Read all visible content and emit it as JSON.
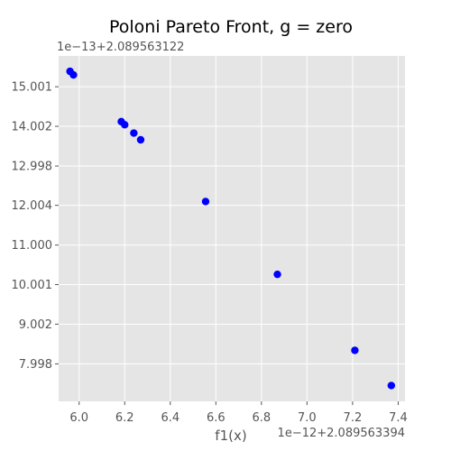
{
  "chart_data": {
    "type": "scatter",
    "title": "Poloni Pareto Front,  g = zero",
    "xlabel": "f1(x)",
    "ylabel": "",
    "x_offset_label": "1e−12+2.089563394",
    "y_offset_label": "1e−13+2.089563122",
    "xlim": [
      5.91,
      7.43
    ],
    "ylim": [
      7.05,
      15.78
    ],
    "grid": true,
    "marker_color": "#0000ff",
    "background_color": "#e5e5e5",
    "x_ticks": [
      {
        "value": 6.0,
        "label": "6.0"
      },
      {
        "value": 6.2,
        "label": "6.2"
      },
      {
        "value": 6.4,
        "label": "6.4"
      },
      {
        "value": 6.6,
        "label": "6.6"
      },
      {
        "value": 6.8,
        "label": "6.8"
      },
      {
        "value": 7.0,
        "label": "7.0"
      },
      {
        "value": 7.2,
        "label": "7.2"
      },
      {
        "value": 7.4,
        "label": "7.4"
      }
    ],
    "y_ticks": [
      {
        "value": 15.001,
        "label": "15.001"
      },
      {
        "value": 14.002,
        "label": "14.002"
      },
      {
        "value": 12.998,
        "label": "12.998"
      },
      {
        "value": 12.004,
        "label": "12.004"
      },
      {
        "value": 11.0,
        "label": "11.000"
      },
      {
        "value": 10.001,
        "label": "10.001"
      },
      {
        "value": 9.002,
        "label": "9.002"
      },
      {
        "value": 7.998,
        "label": "7.998"
      }
    ],
    "points": [
      {
        "x": 5.96,
        "y": 15.39
      },
      {
        "x": 5.975,
        "y": 15.3
      },
      {
        "x": 6.185,
        "y": 14.12
      },
      {
        "x": 6.2,
        "y": 14.04
      },
      {
        "x": 6.24,
        "y": 13.83
      },
      {
        "x": 6.27,
        "y": 13.66
      },
      {
        "x": 6.555,
        "y": 12.1
      },
      {
        "x": 6.87,
        "y": 10.26
      },
      {
        "x": 7.21,
        "y": 8.34
      },
      {
        "x": 7.37,
        "y": 7.45
      }
    ]
  }
}
